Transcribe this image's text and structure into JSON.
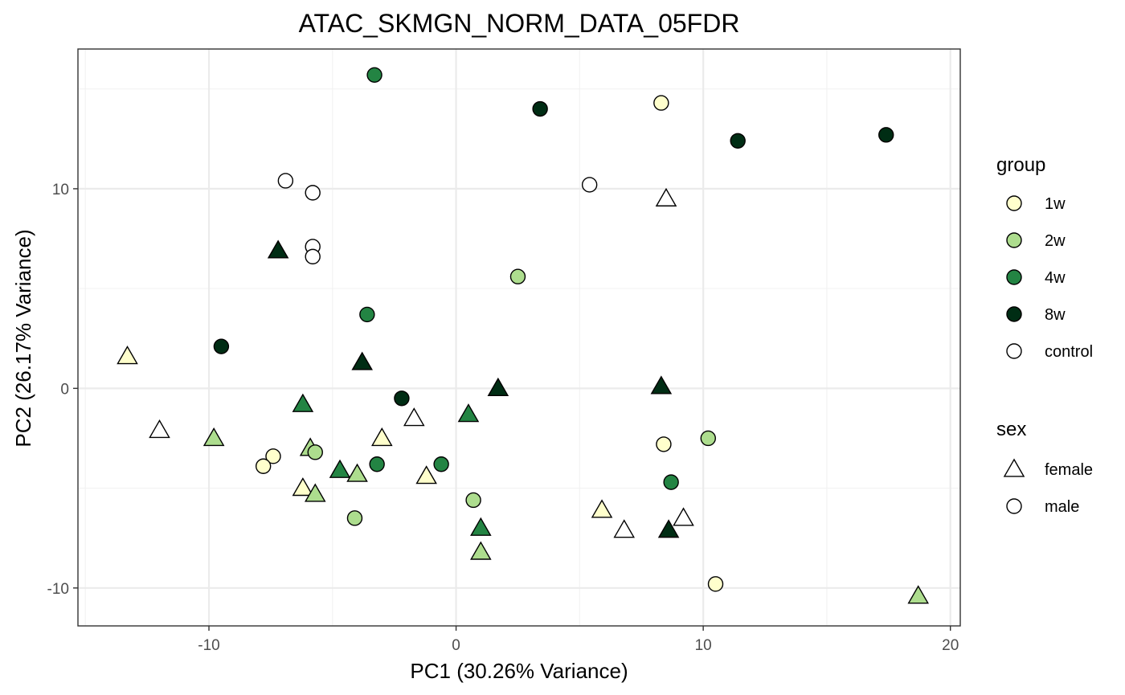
{
  "chart_data": {
    "type": "scatter",
    "title": "ATAC_SKMGN_NORM_DATA_05FDR",
    "xlabel": "PC1 (30.26% Variance)",
    "ylabel": "PC2 (26.17% Variance)",
    "xlim": [
      -15.3,
      20.4
    ],
    "ylim": [
      -11.9,
      17.0
    ],
    "xticks": [
      -10,
      0,
      10,
      20
    ],
    "xtick_labels": [
      "-10",
      "0",
      "10",
      "20"
    ],
    "yticks": [
      -10,
      0,
      10
    ],
    "ytick_labels": [
      "-10",
      "0",
      "10"
    ],
    "grid": true,
    "legend_position": "right",
    "group_legend": {
      "title": "group",
      "entries": [
        {
          "label": "1w",
          "color": "#ffffcc"
        },
        {
          "label": "2w",
          "color": "#addd8e"
        },
        {
          "label": "4w",
          "color": "#238443"
        },
        {
          "label": "8w",
          "color": "#002d14"
        },
        {
          "label": "control",
          "color": "#ffffff"
        }
      ]
    },
    "sex_legend": {
      "title": "sex",
      "entries": [
        {
          "label": "female",
          "shape": "triangle"
        },
        {
          "label": "male",
          "shape": "circle"
        }
      ]
    },
    "points": [
      {
        "x": -3.3,
        "y": 15.7,
        "group": "4w",
        "sex": "male"
      },
      {
        "x": 3.4,
        "y": 14.0,
        "group": "8w",
        "sex": "male"
      },
      {
        "x": 8.3,
        "y": 14.3,
        "group": "1w",
        "sex": "male"
      },
      {
        "x": 11.4,
        "y": 12.4,
        "group": "8w",
        "sex": "male"
      },
      {
        "x": 17.4,
        "y": 12.7,
        "group": "8w",
        "sex": "male"
      },
      {
        "x": -6.9,
        "y": 10.4,
        "group": "control",
        "sex": "male"
      },
      {
        "x": -5.8,
        "y": 9.8,
        "group": "control",
        "sex": "male"
      },
      {
        "x": 5.4,
        "y": 10.2,
        "group": "control",
        "sex": "male"
      },
      {
        "x": 8.5,
        "y": 9.5,
        "group": "control",
        "sex": "female"
      },
      {
        "x": -7.2,
        "y": 6.9,
        "group": "8w",
        "sex": "female"
      },
      {
        "x": -5.8,
        "y": 7.1,
        "group": "control",
        "sex": "male"
      },
      {
        "x": -5.8,
        "y": 6.6,
        "group": "control",
        "sex": "male"
      },
      {
        "x": 2.5,
        "y": 5.6,
        "group": "2w",
        "sex": "male"
      },
      {
        "x": -3.6,
        "y": 3.7,
        "group": "4w",
        "sex": "male"
      },
      {
        "x": -13.3,
        "y": 1.6,
        "group": "1w",
        "sex": "female"
      },
      {
        "x": -9.5,
        "y": 2.1,
        "group": "8w",
        "sex": "male"
      },
      {
        "x": -3.8,
        "y": 1.3,
        "group": "8w",
        "sex": "female"
      },
      {
        "x": -2.2,
        "y": -0.5,
        "group": "8w",
        "sex": "male"
      },
      {
        "x": 1.7,
        "y": 0.0,
        "group": "8w",
        "sex": "female"
      },
      {
        "x": 8.3,
        "y": 0.1,
        "group": "8w",
        "sex": "female"
      },
      {
        "x": -6.2,
        "y": -0.8,
        "group": "4w",
        "sex": "female"
      },
      {
        "x": 0.5,
        "y": -1.3,
        "group": "4w",
        "sex": "female"
      },
      {
        "x": -1.7,
        "y": -1.5,
        "group": "control",
        "sex": "female"
      },
      {
        "x": -12.0,
        "y": -2.1,
        "group": "control",
        "sex": "female"
      },
      {
        "x": -9.8,
        "y": -2.5,
        "group": "2w",
        "sex": "female"
      },
      {
        "x": -3.0,
        "y": -2.5,
        "group": "1w",
        "sex": "female"
      },
      {
        "x": 10.2,
        "y": -2.5,
        "group": "2w",
        "sex": "male"
      },
      {
        "x": 8.4,
        "y": -2.8,
        "group": "1w",
        "sex": "male"
      },
      {
        "x": -5.9,
        "y": -3.0,
        "group": "2w",
        "sex": "female"
      },
      {
        "x": -5.7,
        "y": -3.2,
        "group": "2w",
        "sex": "male"
      },
      {
        "x": -7.4,
        "y": -3.4,
        "group": "1w",
        "sex": "male"
      },
      {
        "x": -7.8,
        "y": -3.9,
        "group": "1w",
        "sex": "male"
      },
      {
        "x": -3.2,
        "y": -3.8,
        "group": "4w",
        "sex": "male"
      },
      {
        "x": -0.6,
        "y": -3.8,
        "group": "4w",
        "sex": "male"
      },
      {
        "x": -4.7,
        "y": -4.1,
        "group": "4w",
        "sex": "female"
      },
      {
        "x": -4.0,
        "y": -4.3,
        "group": "2w",
        "sex": "female"
      },
      {
        "x": -1.2,
        "y": -4.4,
        "group": "1w",
        "sex": "female"
      },
      {
        "x": 8.7,
        "y": -4.7,
        "group": "4w",
        "sex": "male"
      },
      {
        "x": -6.2,
        "y": -5.0,
        "group": "1w",
        "sex": "female"
      },
      {
        "x": -5.7,
        "y": -5.3,
        "group": "2w",
        "sex": "female"
      },
      {
        "x": 0.7,
        "y": -5.6,
        "group": "2w",
        "sex": "male"
      },
      {
        "x": -4.1,
        "y": -6.5,
        "group": "2w",
        "sex": "male"
      },
      {
        "x": 5.9,
        "y": -6.1,
        "group": "1w",
        "sex": "female"
      },
      {
        "x": 1.0,
        "y": -7.0,
        "group": "4w",
        "sex": "female"
      },
      {
        "x": 6.8,
        "y": -7.1,
        "group": "control",
        "sex": "female"
      },
      {
        "x": 9.2,
        "y": -6.5,
        "group": "control",
        "sex": "female"
      },
      {
        "x": 8.6,
        "y": -7.1,
        "group": "8w",
        "sex": "female"
      },
      {
        "x": 1.0,
        "y": -8.2,
        "group": "2w",
        "sex": "female"
      },
      {
        "x": 10.5,
        "y": -9.8,
        "group": "1w",
        "sex": "male"
      },
      {
        "x": 18.7,
        "y": -10.4,
        "group": "2w",
        "sex": "female"
      }
    ]
  }
}
